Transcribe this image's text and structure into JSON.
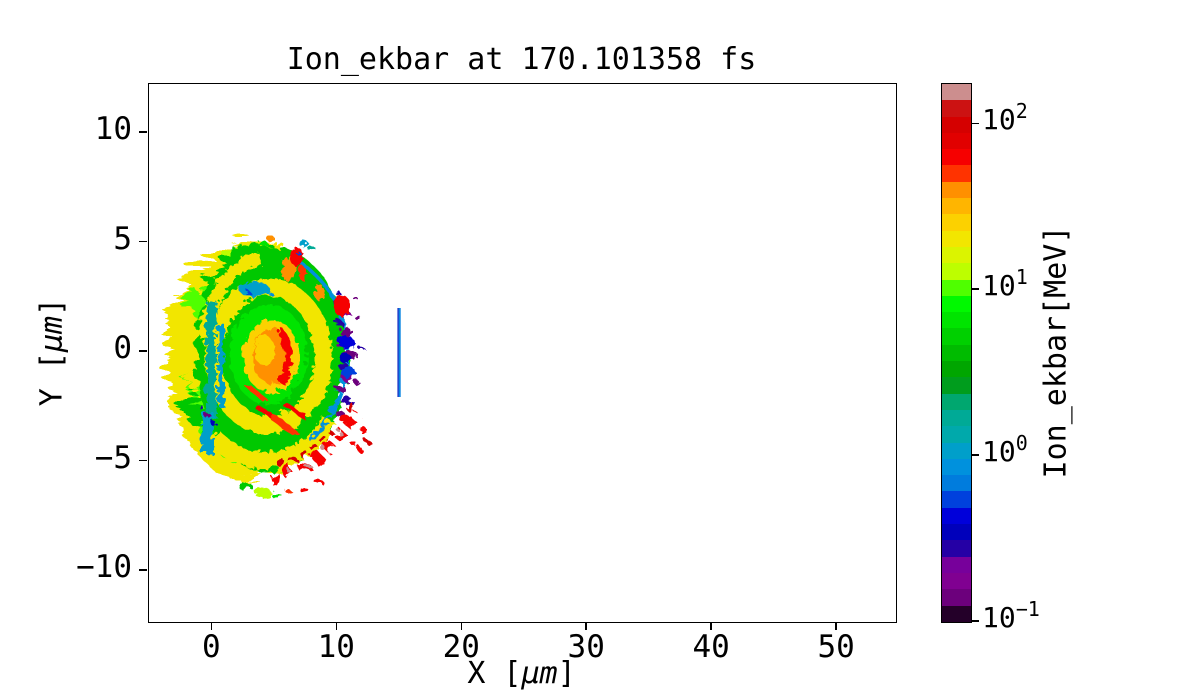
{
  "figure": {
    "title": "Ion_ekbar at 170.101358 fs",
    "background": "#ffffff",
    "axes_border_color": "#000000"
  },
  "axes": {
    "xlabel": {
      "prefix": "X [",
      "unit": "μm",
      "suffix": "]"
    },
    "ylabel": {
      "prefix": "Y [",
      "unit": "μm",
      "suffix": "]"
    },
    "xticks": [
      {
        "v": 0,
        "label": "0"
      },
      {
        "v": 10,
        "label": "10"
      },
      {
        "v": 20,
        "label": "20"
      },
      {
        "v": 30,
        "label": "30"
      },
      {
        "v": 40,
        "label": "40"
      },
      {
        "v": 50,
        "label": "50"
      }
    ],
    "yticks": [
      {
        "v": 10,
        "label": "10"
      },
      {
        "v": 5,
        "label": "5"
      },
      {
        "v": 0,
        "label": "0"
      },
      {
        "v": -5,
        "label": "−5"
      },
      {
        "v": -10,
        "label": "−10"
      }
    ]
  },
  "colorbar": {
    "label": "Ion_ekbar[MeV]",
    "scale": "log",
    "vmin": 0.1,
    "vmax": 175,
    "ticks": [
      {
        "v": 0.1,
        "base": "10",
        "exp": "−1"
      },
      {
        "v": 1,
        "base": "10",
        "exp": "0"
      },
      {
        "v": 10,
        "base": "10",
        "exp": "1"
      },
      {
        "v": 100,
        "base": "10",
        "exp": "2"
      }
    ],
    "colormap": "nipy_spectral",
    "n_bands": 33,
    "band_colors_bottom_to_top": [
      "#240029",
      "#6c007c",
      "#800091",
      "#77009b",
      "#2500a5",
      "#0000bb",
      "#0000da",
      "#0041dd",
      "#007cdd",
      "#0091dd",
      "#009fca",
      "#00a9ab",
      "#00aa96",
      "#00a76f",
      "#009d1d",
      "#00a600",
      "#00bb00",
      "#00d000",
      "#00e400",
      "#00f900",
      "#4fff00",
      "#bdfe00",
      "#dbf400",
      "#f2e600",
      "#fcd100",
      "#ffb500",
      "#ff9000",
      "#ff3300",
      "#f60000",
      "#e10000",
      "#d50000",
      "#cc1212",
      "#cc8e8e"
    ]
  },
  "palette": {
    "yellow": "#f2e600",
    "brightgreen": "#4fff00",
    "green": "#00c800",
    "green2": "#00e400",
    "yellowgreen": "#bdfe00",
    "amber": "#fcd100",
    "orange": "#ff9000",
    "orangered": "#ff3300",
    "red": "#f60000",
    "darkred": "#d50000",
    "grey": "#cc8e8e",
    "teal": "#00aa96",
    "cyan": "#009fca",
    "skyblue": "#0091dd",
    "blue": "#0041dd",
    "deepblue": "#0000da",
    "navy": "#0000bb",
    "violet": "#2500a5",
    "purple": "#6c007c",
    "magenta": "#800091",
    "linedark": "#2233c8",
    "lineblue": "#0b86e0"
  },
  "chart_data": {
    "type": "heatmap",
    "title": "Ion_ekbar at 170.101358 fs",
    "time_fs": 170.101358,
    "xlabel": "X [μm]",
    "ylabel": "Y [μm]",
    "xlim": [
      -5.07,
      54.71
    ],
    "ylim": [
      -12.32,
      12.24
    ],
    "xticks": [
      0,
      10,
      20,
      30,
      40,
      50
    ],
    "yticks": [
      10,
      5,
      0,
      -5,
      -10
    ],
    "grid": false,
    "colorbar": {
      "label": "Ion_ekbar[MeV]",
      "scale": "log",
      "range_MeV": [
        0.1,
        175
      ],
      "ticks_MeV": [
        0.1,
        1,
        10,
        100
      ],
      "colormap": "nipy_spectral",
      "discrete_bands": 33
    },
    "features": [
      {
        "name": "main-plasma-blob",
        "x_range": [
          -3.2,
          10.5
        ],
        "y_range": [
          -6,
          5
        ],
        "description": "irregular ion cloud, green interior with ragged yellow/green streaky fringe on left/top/bottom",
        "energy_MeV": "5-20"
      },
      {
        "name": "hot-core",
        "x": 4.6,
        "y": -0.4,
        "rx": 2.0,
        "ry": 2.8,
        "description": "concentric amber/orange core with red crescent on its right side",
        "energy_MeV": "25-80"
      },
      {
        "name": "dome-rim",
        "x": 10.2,
        "y_range": [
          -4,
          4
        ],
        "description": "smooth hemispherical right boundary with thin cyan-blue rim",
        "energy_MeV": "0.5-1"
      },
      {
        "name": "purple-speckle-band",
        "x_range": [
          10.3,
          12.2
        ],
        "y_range": [
          -2.6,
          2.6
        ],
        "description": "scattered purple/dark-blue speckles just outside the dome rim",
        "energy_MeV": "0.1-0.6"
      },
      {
        "name": "lower-right-red-arc",
        "x_range": [
          6,
          12
        ],
        "y_range": [
          -5.6,
          -2.4
        ],
        "description": "dashed arc of red speckles with a few grey spots above 100 MeV",
        "energy_MeV": "60-200"
      },
      {
        "name": "upper-orange-patches",
        "x_range": [
          5,
          10.5
        ],
        "y_range": [
          2,
          4.5
        ],
        "description": "detached orange/red patches above the blob",
        "energy_MeV": "30-100"
      },
      {
        "name": "detached-blue-line",
        "x": 15.1,
        "y_range": [
          -2.0,
          1.85
        ],
        "description": "thin vertical blue segment detached from the blob",
        "energy_MeV": "1"
      }
    ]
  }
}
